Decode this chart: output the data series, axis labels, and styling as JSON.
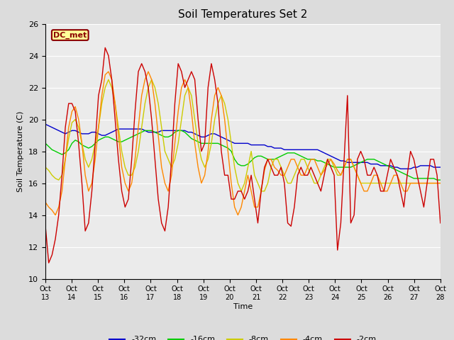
{
  "title": "Soil Temperatures Set 2",
  "xlabel": "Time",
  "ylabel": "Soil Temperature (C)",
  "ylim": [
    10,
    26
  ],
  "background_color": "#dcdcdc",
  "plot_bg_color": "#ebebeb",
  "annotation_text": "DC_met",
  "annotation_bg": "#ffff99",
  "annotation_border": "#8b0000",
  "tick_labels": [
    "Oct 13",
    "Oct 14",
    "Oct 15",
    "Oct 16",
    "Oct 17",
    "Oct 18",
    "Oct 19",
    "Oct 20",
    "Oct 21",
    "Oct 22",
    "Oct 23",
    "Oct 24",
    "Oct 25",
    "Oct 26",
    "Oct 27",
    "Oct 28"
  ],
  "legend_labels": [
    "-32cm",
    "-16cm",
    "-8cm",
    "-4cm",
    "-2cm"
  ],
  "series_colors": [
    "#0000cc",
    "#00cc00",
    "#cccc00",
    "#ff8800",
    "#cc0000"
  ],
  "depth_32cm": [
    19.7,
    19.6,
    19.5,
    19.4,
    19.3,
    19.2,
    19.1,
    19.2,
    19.3,
    19.3,
    19.2,
    19.1,
    19.1,
    19.1,
    19.2,
    19.2,
    19.1,
    19.0,
    19.0,
    19.1,
    19.2,
    19.3,
    19.4,
    19.4,
    19.4,
    19.4,
    19.4,
    19.4,
    19.4,
    19.4,
    19.3,
    19.2,
    19.2,
    19.2,
    19.2,
    19.3,
    19.3,
    19.3,
    19.3,
    19.3,
    19.3,
    19.3,
    19.3,
    19.2,
    19.2,
    19.1,
    19.0,
    18.9,
    18.9,
    19.0,
    19.1,
    19.1,
    19.0,
    18.9,
    18.8,
    18.7,
    18.6,
    18.5,
    18.5,
    18.5,
    18.5,
    18.5,
    18.4,
    18.4,
    18.4,
    18.4,
    18.4,
    18.3,
    18.3,
    18.2,
    18.2,
    18.2,
    18.1,
    18.1,
    18.1,
    18.1,
    18.1,
    18.1,
    18.1,
    18.1,
    18.1,
    18.1,
    18.1,
    18.0,
    17.9,
    17.8,
    17.7,
    17.6,
    17.5,
    17.4,
    17.4,
    17.3,
    17.3,
    17.3,
    17.3,
    17.3,
    17.3,
    17.3,
    17.2,
    17.2,
    17.2,
    17.1,
    17.1,
    17.1,
    17.1,
    17.0,
    17.0,
    16.9,
    16.9,
    16.9,
    16.9,
    17.0,
    17.0,
    17.1,
    17.1,
    17.1,
    17.1,
    17.0,
    17.0,
    17.0
  ],
  "depth_16cm": [
    18.5,
    18.3,
    18.1,
    18.0,
    17.9,
    17.8,
    17.9,
    18.1,
    18.5,
    18.7,
    18.6,
    18.4,
    18.3,
    18.2,
    18.3,
    18.5,
    18.7,
    18.8,
    18.9,
    18.9,
    18.8,
    18.7,
    18.6,
    18.6,
    18.7,
    18.8,
    18.9,
    19.0,
    19.1,
    19.2,
    19.3,
    19.3,
    19.3,
    19.2,
    19.1,
    19.0,
    18.9,
    18.9,
    19.0,
    19.2,
    19.3,
    19.3,
    19.2,
    19.0,
    18.8,
    18.7,
    18.6,
    18.5,
    18.5,
    18.5,
    18.5,
    18.5,
    18.5,
    18.4,
    18.3,
    18.2,
    18.0,
    17.5,
    17.2,
    17.1,
    17.1,
    17.2,
    17.4,
    17.6,
    17.7,
    17.7,
    17.6,
    17.5,
    17.5,
    17.5,
    17.6,
    17.7,
    17.8,
    17.9,
    17.9,
    17.9,
    17.8,
    17.7,
    17.6,
    17.5,
    17.5,
    17.5,
    17.4,
    17.4,
    17.3,
    17.2,
    17.1,
    17.0,
    17.0,
    17.0,
    17.0,
    17.0,
    17.0,
    17.1,
    17.2,
    17.3,
    17.4,
    17.5,
    17.5,
    17.5,
    17.4,
    17.3,
    17.2,
    17.1,
    17.0,
    16.9,
    16.8,
    16.7,
    16.6,
    16.5,
    16.4,
    16.3,
    16.3,
    16.3,
    16.3,
    16.3,
    16.3,
    16.3,
    16.2,
    16.2
  ],
  "depth_8cm": [
    17.0,
    16.8,
    16.5,
    16.3,
    16.2,
    16.5,
    17.5,
    18.8,
    19.8,
    20.0,
    19.5,
    18.5,
    17.5,
    17.0,
    17.5,
    18.5,
    19.5,
    21.0,
    22.0,
    22.5,
    22.0,
    21.0,
    19.5,
    18.0,
    17.0,
    16.5,
    16.5,
    17.0,
    18.0,
    19.5,
    21.0,
    22.0,
    22.5,
    22.0,
    21.0,
    19.5,
    18.0,
    17.5,
    17.0,
    17.5,
    18.5,
    20.0,
    21.5,
    22.0,
    21.5,
    20.0,
    18.5,
    17.5,
    17.0,
    17.5,
    18.5,
    20.0,
    21.0,
    21.5,
    21.0,
    20.0,
    18.5,
    17.0,
    16.0,
    15.5,
    16.0,
    17.0,
    18.0,
    16.5,
    16.0,
    15.5,
    15.5,
    16.0,
    17.0,
    17.5,
    17.5,
    17.0,
    16.5,
    16.0,
    16.0,
    16.5,
    17.0,
    17.5,
    17.5,
    17.0,
    16.5,
    16.0,
    16.0,
    16.5,
    17.0,
    17.5,
    17.5,
    17.0,
    16.5,
    16.5,
    17.0,
    17.5,
    17.5,
    17.0,
    16.5,
    16.0,
    16.0,
    16.0,
    16.0,
    16.0,
    16.0,
    16.0,
    16.0,
    16.0,
    16.0,
    16.0,
    16.0,
    16.0,
    16.0,
    16.0,
    16.0,
    16.0,
    16.0,
    16.0,
    16.0,
    16.0,
    16.0,
    16.0,
    16.0,
    16.0
  ],
  "depth_4cm": [
    14.8,
    14.5,
    14.3,
    14.0,
    14.5,
    15.5,
    17.5,
    19.5,
    20.5,
    20.8,
    20.0,
    18.5,
    16.5,
    15.5,
    16.0,
    17.5,
    19.5,
    21.5,
    22.8,
    23.0,
    22.5,
    21.0,
    19.0,
    17.0,
    16.0,
    15.5,
    16.0,
    17.5,
    19.5,
    21.5,
    22.5,
    23.0,
    22.5,
    21.0,
    19.0,
    17.0,
    16.0,
    15.5,
    16.5,
    18.5,
    20.5,
    22.0,
    22.5,
    22.0,
    20.5,
    18.5,
    17.0,
    16.0,
    16.5,
    18.0,
    20.0,
    21.5,
    22.0,
    21.5,
    20.0,
    18.0,
    16.0,
    14.5,
    14.0,
    14.5,
    15.5,
    16.5,
    15.5,
    14.5,
    14.5,
    15.5,
    16.8,
    17.5,
    17.5,
    17.0,
    16.8,
    16.5,
    16.5,
    17.0,
    17.5,
    17.5,
    17.0,
    16.5,
    16.5,
    17.0,
    17.5,
    17.5,
    17.0,
    16.5,
    16.8,
    17.2,
    17.5,
    17.2,
    16.8,
    16.5,
    17.0,
    17.5,
    17.5,
    17.0,
    16.5,
    16.0,
    15.5,
    15.5,
    16.0,
    16.5,
    16.5,
    16.0,
    15.5,
    15.5,
    16.0,
    16.5,
    16.5,
    16.0,
    15.5,
    15.5,
    16.0,
    16.0,
    16.0,
    16.0,
    16.0,
    16.0,
    16.0,
    16.0,
    16.0,
    16.0
  ],
  "depth_2cm": [
    13.3,
    11.0,
    11.5,
    12.5,
    14.0,
    16.5,
    19.5,
    21.0,
    21.0,
    20.5,
    18.5,
    16.0,
    13.0,
    13.5,
    15.5,
    18.5,
    21.5,
    22.5,
    24.5,
    24.0,
    22.5,
    20.0,
    17.5,
    15.5,
    14.5,
    15.0,
    17.5,
    20.5,
    23.0,
    23.5,
    23.0,
    22.0,
    20.0,
    17.5,
    15.0,
    13.5,
    13.0,
    14.5,
    17.5,
    21.0,
    23.5,
    23.0,
    22.0,
    22.5,
    23.0,
    22.5,
    20.0,
    18.0,
    18.5,
    22.0,
    23.5,
    22.5,
    21.0,
    18.0,
    16.5,
    16.5,
    15.0,
    15.0,
    15.5,
    15.5,
    15.0,
    15.5,
    16.5,
    15.0,
    13.5,
    15.5,
    17.0,
    17.5,
    17.0,
    16.5,
    16.5,
    17.0,
    16.0,
    13.5,
    13.3,
    14.5,
    16.5,
    17.0,
    16.5,
    16.5,
    17.0,
    16.5,
    16.0,
    15.5,
    16.5,
    17.5,
    17.0,
    16.5,
    11.8,
    13.5,
    17.5,
    21.5,
    13.5,
    14.0,
    17.5,
    18.0,
    17.5,
    16.5,
    16.5,
    17.0,
    16.5,
    15.5,
    15.5,
    16.5,
    17.5,
    17.0,
    16.5,
    15.5,
    14.5,
    16.5,
    18.0,
    17.5,
    16.5,
    15.5,
    14.5,
    16.0,
    17.5,
    17.5,
    16.5,
    13.5
  ]
}
